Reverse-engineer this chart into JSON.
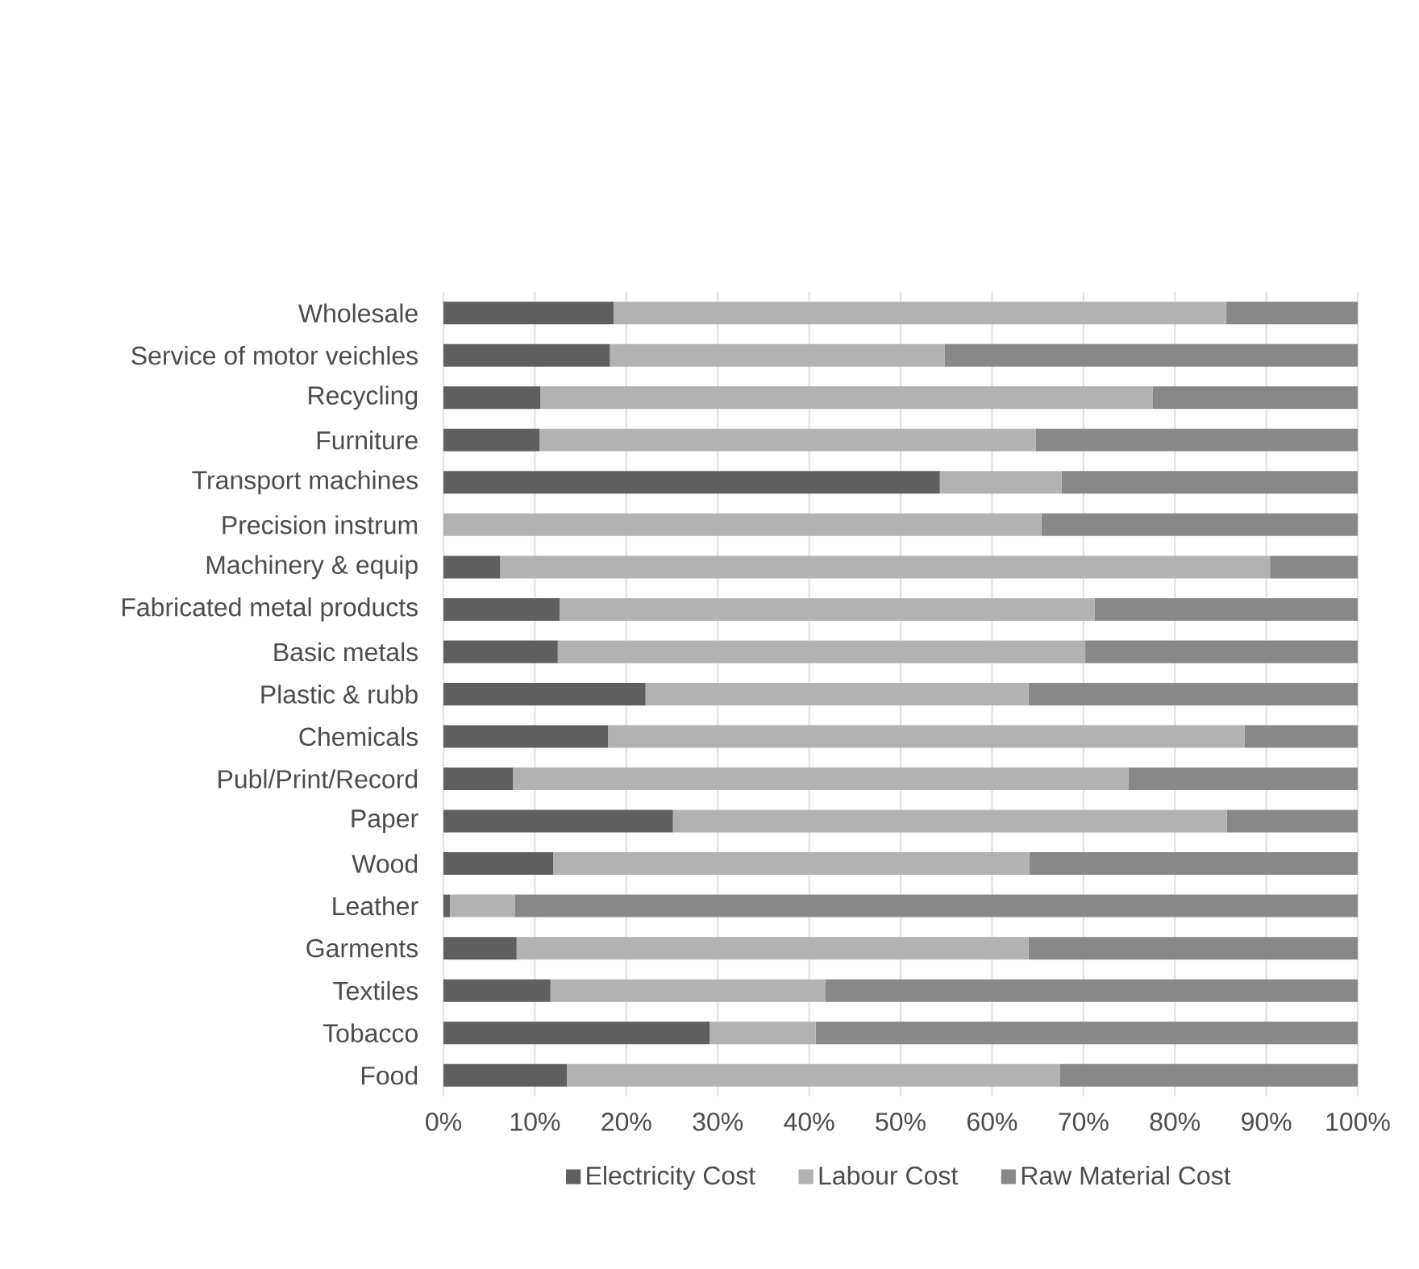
{
  "chart_data": {
    "type": "bar",
    "orientation": "horizontal",
    "stacked": true,
    "categories": [
      "Wholesale",
      "Service of motor veichles",
      "Recycling",
      "Furniture",
      "Transport machines",
      "Precision instrum",
      "Machinery & equip",
      "Fabricated metal products",
      "Basic metals",
      "Plastic & rubb",
      "Chemicals",
      "Publ/Print/Record",
      "Paper",
      "Wood",
      "Leather",
      "Garments",
      "Textiles",
      "Tobacco",
      "Food"
    ],
    "series": [
      {
        "name": "Electricity Cost",
        "color": "#5f5f5f",
        "values": [
          18.6,
          18.2,
          10.6,
          10.5,
          54.3,
          0,
          6.2,
          12.7,
          12.5,
          22.1,
          18.0,
          7.6,
          25.1,
          12.0,
          0.7,
          8.0,
          11.7,
          29.1,
          13.5
        ]
      },
      {
        "name": "Labour Cost",
        "color": "#b2b2b2",
        "values": [
          67.0,
          36.6,
          67.0,
          54.3,
          13.3,
          65.4,
          84.2,
          58.5,
          57.7,
          41.9,
          69.6,
          67.3,
          60.6,
          52.1,
          7.1,
          56.0,
          30.1,
          11.6,
          53.9
        ]
      },
      {
        "name": "Raw Material Cost",
        "color": "#888888",
        "values": [
          14.4,
          45.2,
          22.4,
          35.2,
          32.4,
          34.6,
          9.6,
          28.8,
          29.8,
          36.0,
          12.4,
          25.1,
          14.3,
          35.9,
          92.2,
          36.0,
          58.2,
          59.3,
          32.6
        ]
      }
    ],
    "xlim": [
      0,
      100
    ],
    "xticks": [
      {
        "value": 0,
        "label": "0%"
      },
      {
        "value": 10,
        "label": "10%"
      },
      {
        "value": 20,
        "label": "20%"
      },
      {
        "value": 30,
        "label": "30%"
      },
      {
        "value": 40,
        "label": "40%"
      },
      {
        "value": 50,
        "label": "50%"
      },
      {
        "value": 60,
        "label": "60%"
      },
      {
        "value": 70,
        "label": "70%"
      },
      {
        "value": 80,
        "label": "80%"
      },
      {
        "value": 90,
        "label": "90%"
      },
      {
        "value": 100,
        "label": "100%"
      }
    ],
    "grid": "x",
    "legend": "bottom"
  }
}
